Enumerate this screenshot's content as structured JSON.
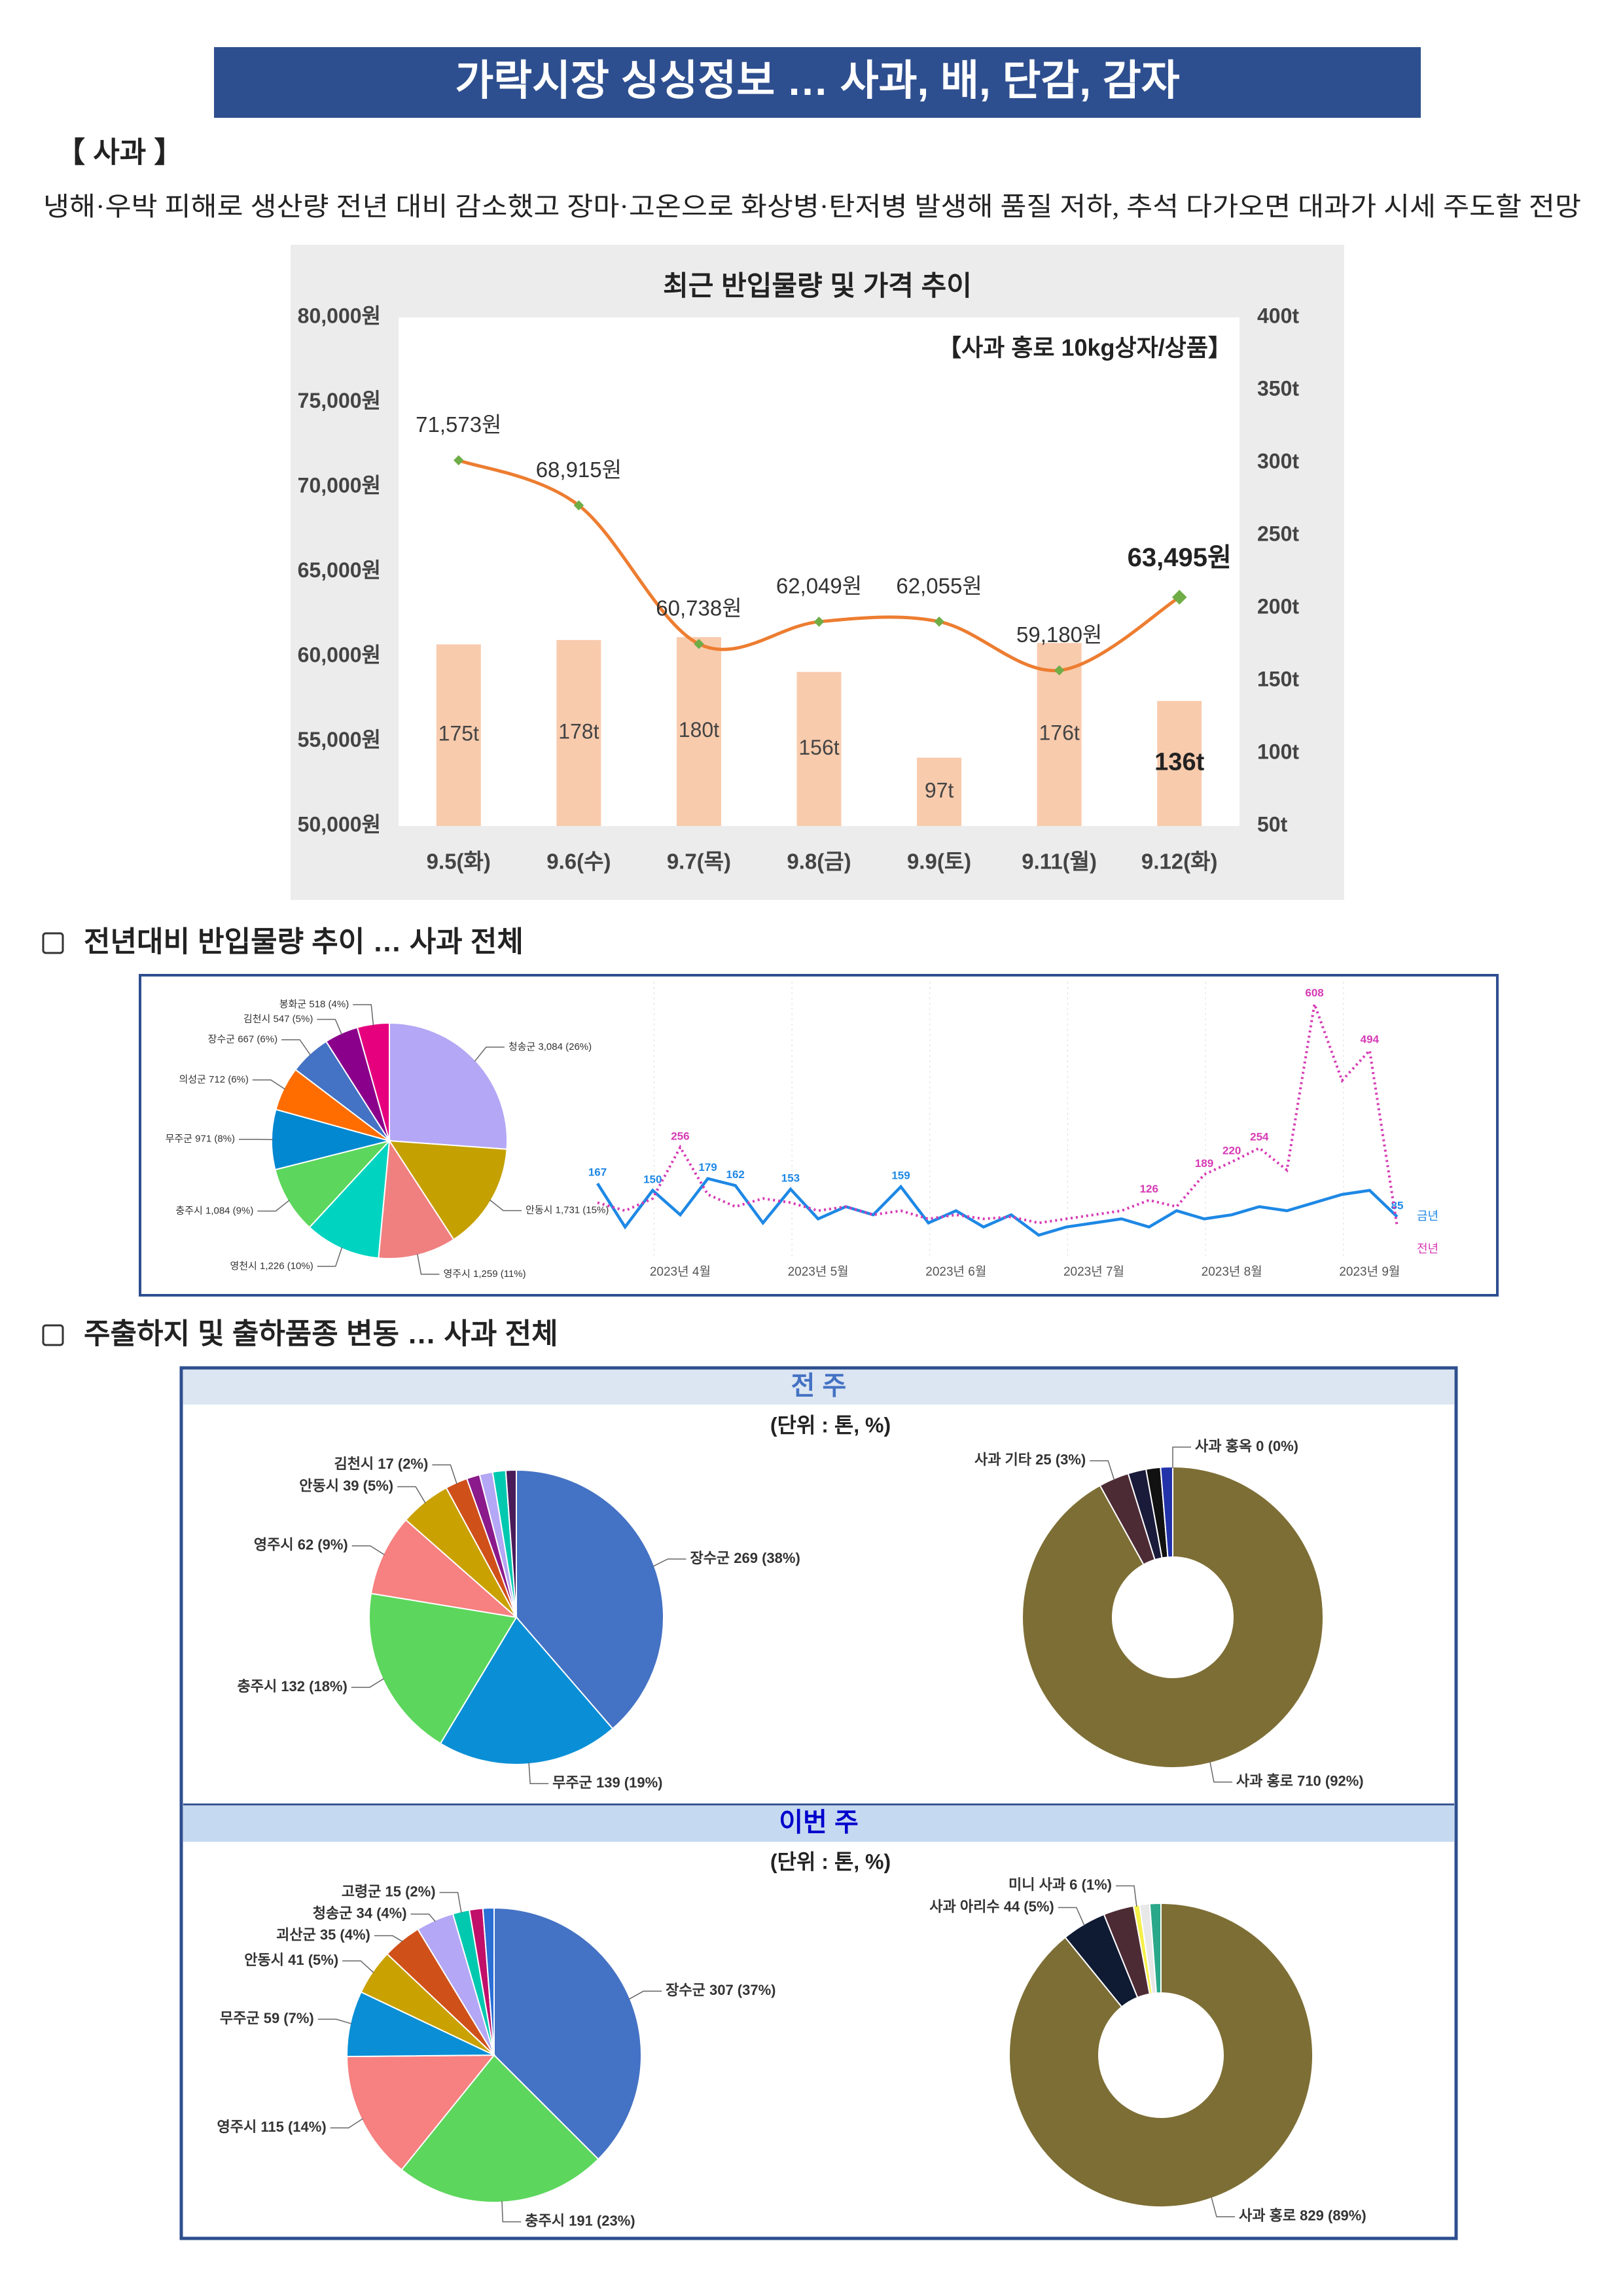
{
  "header": {
    "title": "가락시장 싱싱정보 … 사과, 배, 단감, 감자"
  },
  "section": {
    "label": "【 사과 】",
    "summary": "냉해·우박 피해로 생산량 전년 대비 감소했고 장마·고온으로 화상병·탄저병 발생해 품질 저하, 추석 다가오면 대과가 시세 주도할 전망"
  },
  "sections": [
    {
      "title": "전년대비 반입물량 추이 … 사과 전체"
    },
    {
      "title": "주출하지 및 출하품종 변동 … 사과 전체",
      "weeks": [
        {
          "label": "전 주",
          "unit": "(단위 : 톤, %)"
        },
        {
          "label": "이번 주",
          "unit": "(단위 : 톤, %)"
        }
      ]
    }
  ],
  "chart_data": [
    {
      "type": "combo",
      "title": "최근 반입물량 및 가격 추이",
      "subtitle": "【사과 홍로 10kg상자/상품】",
      "categories": [
        "9.5(화)",
        "9.6(수)",
        "9.7(목)",
        "9.8(금)",
        "9.9(토)",
        "9.11(월)",
        "9.12(화)"
      ],
      "series": [
        {
          "type": "bar",
          "axis": "y2",
          "color": "#f8cbad",
          "values": [
            175,
            178,
            180,
            156,
            97,
            176,
            136
          ],
          "value_labels": [
            "175t",
            "178t",
            "180t",
            "156t",
            "97t",
            "176t",
            "136t"
          ]
        },
        {
          "type": "line",
          "color": "#ed7d31",
          "marker_color": "#70ad47",
          "values": [
            71573,
            68915,
            60738,
            62049,
            62055,
            59180,
            63495
          ],
          "value_labels": [
            "71,573원",
            "68,915원",
            "60,738원",
            "62,049원",
            "62,055원",
            "59,180원",
            "63,495원"
          ]
        }
      ],
      "ylim": [
        50000,
        80000
      ],
      "yticks": [
        {
          "value": 50000,
          "label": "50,000원"
        },
        {
          "value": 55000,
          "label": "55,000원"
        },
        {
          "value": 60000,
          "label": "60,000원"
        },
        {
          "value": 65000,
          "label": "65,000원"
        },
        {
          "value": 70000,
          "label": "70,000원"
        },
        {
          "value": 75000,
          "label": "75,000원"
        },
        {
          "value": 80000,
          "label": "80,000원"
        }
      ],
      "y2lim": [
        50,
        400
      ],
      "y2ticks": [
        {
          "value": 50,
          "label": "50t"
        },
        {
          "value": 100,
          "label": "100t"
        },
        {
          "value": 150,
          "label": "150t"
        },
        {
          "value": 200,
          "label": "200t"
        },
        {
          "value": 250,
          "label": "250t"
        },
        {
          "value": 300,
          "label": "300t"
        },
        {
          "value": 350,
          "label": "350t"
        },
        {
          "value": 400,
          "label": "400t"
        }
      ],
      "grid": false
    },
    {
      "type": "pie",
      "values": [
        3084,
        1731,
        1259,
        1226,
        1084,
        971,
        712,
        667,
        547,
        518
      ],
      "labels": [
        "청송군 3,084 (26%)",
        "안동시 1,731 (15%)",
        "영주시 1,259 (11%)",
        "영천시 1,226 (10%)",
        "충주시 1,084 (9%)",
        "무주군 971 (8%)",
        "의성군 712 (6%)",
        "장수군 667 (6%)",
        "김천시 547 (5%)",
        "봉화군 518 (4%)"
      ],
      "colors": [
        "#b4a7f5",
        "#c4a000",
        "#f08080",
        "#00d4c0",
        "#5cd65c",
        "#0288d1",
        "#ff6d00",
        "#4472c4",
        "#8b008b",
        "#e6007e"
      ]
    },
    {
      "type": "line",
      "categories": [
        null,
        null,
        null,
        "2023년 4월",
        null,
        null,
        null,
        null,
        "2023년 5월",
        null,
        null,
        null,
        null,
        "2023년 6월",
        null,
        null,
        null,
        null,
        "2023년 7월",
        null,
        null,
        null,
        null,
        "2023년 8월",
        null,
        null,
        null,
        null,
        "2023년 9월",
        null
      ],
      "series": [
        {
          "name": "금년",
          "color": "#1e88e5",
          "dashed": false,
          "values": [
            167,
            60,
            150,
            90,
            179,
            162,
            70,
            153,
            80,
            110,
            90,
            159,
            70,
            100,
            60,
            90,
            40,
            60,
            70,
            80,
            60,
            100,
            80,
            90,
            110,
            100,
            120,
            140,
            150,
            85
          ],
          "value_labels": [
            "167",
            null,
            "150",
            null,
            "179",
            "162",
            null,
            "153",
            null,
            null,
            null,
            "159",
            null,
            null,
            null,
            null,
            null,
            null,
            null,
            null,
            null,
            null,
            null,
            null,
            null,
            null,
            null,
            null,
            null,
            "85"
          ]
        },
        {
          "name": "전년",
          "color": "#d63ab4",
          "dashed": true,
          "values": [
            120,
            100,
            130,
            256,
            140,
            110,
            130,
            120,
            100,
            110,
            90,
            100,
            80,
            90,
            80,
            85,
            70,
            80,
            90,
            100,
            126,
            110,
            189,
            220,
            254,
            200,
            608,
            420,
            494,
            60
          ],
          "value_labels": [
            null,
            null,
            null,
            "256",
            null,
            null,
            null,
            null,
            null,
            null,
            null,
            null,
            null,
            null,
            null,
            null,
            null,
            null,
            null,
            null,
            "126",
            null,
            "189",
            "220",
            "254",
            null,
            "608",
            null,
            "494",
            null
          ]
        }
      ],
      "ylim": [
        0,
        650
      ]
    },
    {
      "type": "pie",
      "values": [
        269,
        139,
        132,
        62,
        39,
        17,
        10,
        10,
        10,
        8
      ],
      "labels": [
        "장수군 269 (38%)",
        "무주군 139 (19%)",
        "충주시 132 (18%)",
        "영주시 62 (9%)",
        "안동시 39 (5%)",
        "김천시 17 (2%)",
        null,
        null,
        null,
        null
      ],
      "colors": [
        "#4472c4",
        "#0a8fd6",
        "#5cd65c",
        "#f78080",
        "#c9a100",
        "#d0501a",
        "#8b1a8b",
        "#b4a7f5",
        "#00c9b0",
        "#4b1c5a"
      ]
    },
    {
      "type": "donut",
      "values": [
        710,
        25,
        15,
        12,
        10,
        0
      ],
      "labels": [
        "사과 홍로 710 (92%)",
        "사과 기타 25 (3%)",
        null,
        null,
        null,
        "사과 홍옥 0 (0%)"
      ],
      "colors": [
        "#7d6e35",
        "#4d2b35",
        "#1a1a3a",
        "#111111",
        "#2233aa",
        "#888888"
      ]
    },
    {
      "type": "pie",
      "values": [
        307,
        191,
        115,
        59,
        41,
        35,
        34,
        15,
        12,
        10
      ],
      "labels": [
        "장수군 307 (37%)",
        "충주시 191 (23%)",
        "영주시 115 (14%)",
        "무주군 59 (7%)",
        "안동시 41 (5%)",
        "괴산군 35 (4%)",
        "청송군 34 (4%)",
        "고령군 15 (2%)",
        null,
        null
      ],
      "colors": [
        "#4472c4",
        "#5cd65c",
        "#f78080",
        "#0a8fd6",
        "#c9a100",
        "#d0501a",
        "#b4a7f5",
        "#00c9b0",
        "#c0106a",
        "#2a6fd6"
      ]
    },
    {
      "type": "donut",
      "values": [
        829,
        44,
        30,
        6,
        10,
        11
      ],
      "labels": [
        "사과 홍로 829 (89%)",
        "사과 아리수 44 (5%)",
        null,
        "미니 사과 6 (1%)",
        null,
        null
      ],
      "colors": [
        "#7d6e35",
        "#0f1a33",
        "#4d2b35",
        "#f5f04a",
        "#e8e8e8",
        "#2aa88a"
      ]
    }
  ]
}
